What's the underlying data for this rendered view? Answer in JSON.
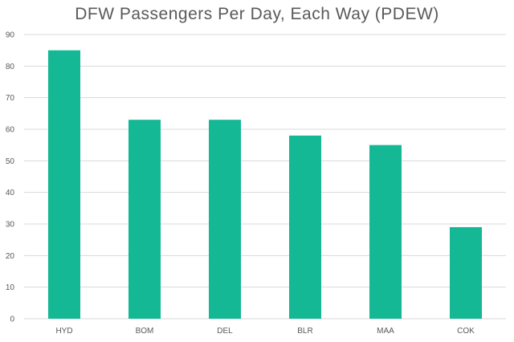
{
  "chart_data": {
    "type": "bar",
    "title": "DFW Passengers Per Day, Each Way (PDEW)",
    "categories": [
      "HYD",
      "BOM",
      "DEL",
      "BLR",
      "MAA",
      "COK"
    ],
    "values": [
      85,
      63,
      63,
      58,
      55,
      29
    ],
    "ylim": [
      0,
      90
    ],
    "yticks": [
      0,
      10,
      20,
      30,
      40,
      50,
      60,
      70,
      80,
      90
    ],
    "xlabel": "",
    "ylabel": "",
    "grid": true,
    "legend": "none",
    "bar_color": "#14b894"
  }
}
